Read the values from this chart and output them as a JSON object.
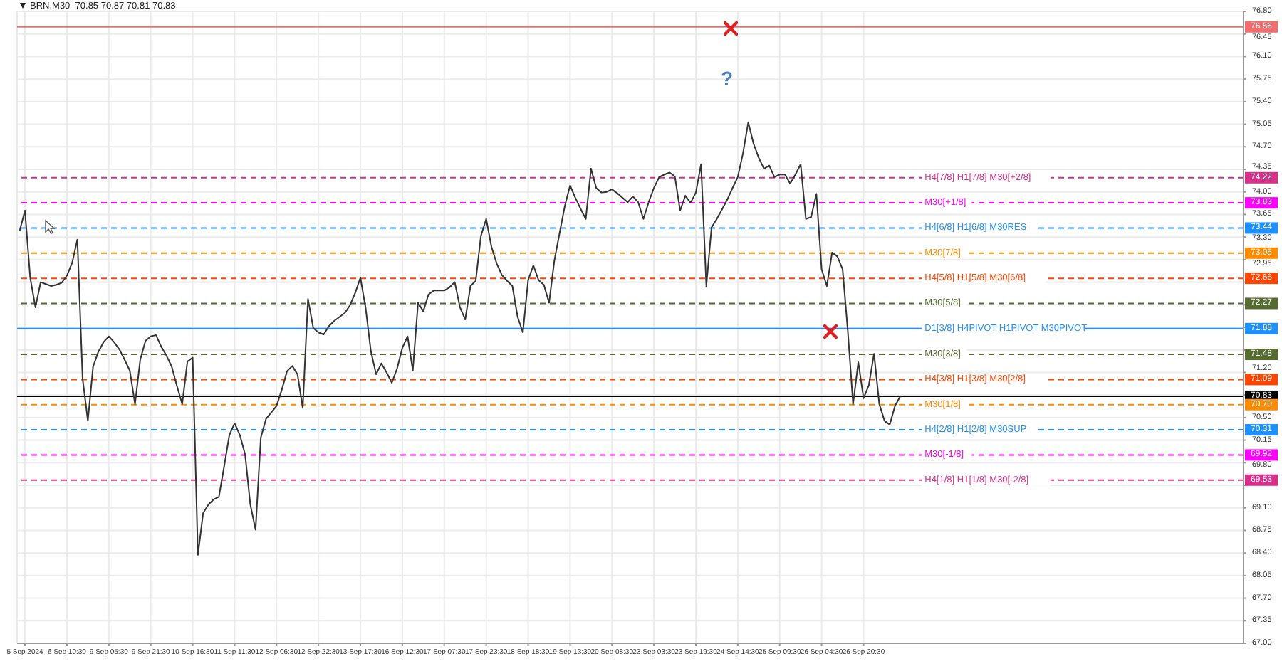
{
  "chart_data": {
    "type": "line",
    "title": "BRN,M30  70.85 70.87 70.81 70.83",
    "categories": [
      null,
      "5 Sep 2024",
      null,
      null,
      null,
      null,
      null,
      null,
      null,
      "6 Sep 10:30",
      null,
      null,
      null,
      null,
      null,
      null,
      null,
      "9 Sep 05:30",
      null,
      null,
      null,
      null,
      null,
      null,
      null,
      "9 Sep 21:30",
      null,
      null,
      null,
      null,
      null,
      null,
      null,
      "10 Sep 16:30",
      null,
      null,
      null,
      null,
      null,
      null,
      null,
      "11 Sep 11:30",
      null,
      null,
      null,
      null,
      null,
      null,
      null,
      "12 Sep 06:30",
      null,
      null,
      null,
      null,
      null,
      null,
      null,
      "12 Sep 22:30",
      null,
      null,
      null,
      null,
      null,
      null,
      null,
      "13 Sep 17:30",
      null,
      null,
      null,
      null,
      null,
      null,
      null,
      "16 Sep 12:30",
      null,
      null,
      null,
      null,
      null,
      null,
      null,
      "17 Sep 07:30",
      null,
      null,
      null,
      null,
      null,
      null,
      null,
      "17 Sep 23:30",
      null,
      null,
      null,
      null,
      null,
      null,
      null,
      "18 Sep 18:30",
      null,
      null,
      null,
      null,
      null,
      null,
      null,
      "19 Sep 13:30",
      null,
      null,
      null,
      null,
      null,
      null,
      null,
      "20 Sep 08:30",
      null,
      null,
      null,
      null,
      null,
      null,
      null,
      "23 Sep 03:30",
      null,
      null,
      null,
      null,
      null,
      null,
      null,
      "23 Sep 19:30",
      null,
      null,
      null,
      null,
      null,
      null,
      null,
      "24 Sep 14:30",
      null,
      null,
      null,
      null,
      null,
      null,
      null,
      "25 Sep 09:30",
      null,
      null,
      null,
      null,
      null,
      null,
      null,
      "26 Sep 04:30",
      null,
      null,
      null,
      null,
      null,
      null,
      null,
      "26 Sep 20:30",
      null,
      null,
      null,
      null,
      null,
      null,
      null,
      null,
      null,
      null,
      null,
      null,
      null,
      null,
      null,
      null,
      null,
      null,
      null,
      null,
      null,
      null,
      null,
      null,
      null,
      null,
      null,
      null,
      null,
      null,
      null,
      null,
      null,
      null,
      null,
      null,
      null,
      null,
      null,
      null,
      null,
      null,
      null,
      null,
      null,
      null,
      null,
      null,
      null,
      null,
      null,
      null,
      null,
      null,
      null,
      null,
      null,
      null,
      null,
      null,
      null,
      null,
      null,
      null,
      null,
      null,
      null,
      null,
      null,
      null,
      null,
      null
    ],
    "ylim": [
      67.0,
      76.8
    ],
    "yticks": [
      {
        "value": 67,
        "label": "67.00"
      },
      {
        "value": 67.35,
        "label": "67.35"
      },
      {
        "value": 67.7,
        "label": "67.70"
      },
      {
        "value": 68.05,
        "label": "68.05"
      },
      {
        "value": 68.4,
        "label": "68.40"
      },
      {
        "value": 68.75,
        "label": "68.75"
      },
      {
        "value": 69.1,
        "label": "69.10"
      },
      {
        "value": 69.45,
        "label": null
      },
      {
        "value": 69.8,
        "label": "69.80"
      },
      {
        "value": 70.15,
        "label": "70.15"
      },
      {
        "value": 70.5,
        "label": "70.50"
      },
      {
        "value": 70.85,
        "label": null
      },
      {
        "value": 71.2,
        "label": "71.20"
      },
      {
        "value": 71.55,
        "label": null
      },
      {
        "value": 71.9,
        "label": null
      },
      {
        "value": 72.25,
        "label": null
      },
      {
        "value": 72.6,
        "label": null
      },
      {
        "value": 72.95,
        "label": "72.95"
      },
      {
        "value": 73.3,
        "label": "73.30"
      },
      {
        "value": 73.65,
        "label": "73.65"
      },
      {
        "value": 74,
        "label": "74.00"
      },
      {
        "value": 74.35,
        "label": "74.35"
      },
      {
        "value": 74.7,
        "label": "74.70"
      },
      {
        "value": 75.05,
        "label": "75.05"
      },
      {
        "value": 75.4,
        "label": "75.40"
      },
      {
        "value": 75.75,
        "label": "75.75"
      },
      {
        "value": 76.1,
        "label": "76.10"
      },
      {
        "value": 76.45,
        "label": "76.45"
      },
      {
        "value": 76.8,
        "label": "76.80"
      }
    ],
    "grid": true,
    "series": [
      {
        "color": "#333333",
        "values": [
          73.4,
          73.71,
          72.67,
          72.21,
          72.6,
          72.57,
          72.54,
          72.56,
          72.59,
          72.7,
          72.9,
          73.26,
          71.1,
          70.45,
          71.29,
          71.52,
          71.67,
          71.76,
          71.67,
          71.56,
          71.4,
          71.23,
          70.71,
          71.4,
          71.69,
          71.76,
          71.78,
          71.6,
          71.46,
          71.29,
          70.99,
          70.71,
          71.37,
          71.43,
          68.37,
          69.02,
          69.15,
          69.23,
          69.27,
          69.74,
          70.23,
          70.41,
          70.23,
          69.93,
          69.15,
          68.76,
          70.19,
          70.48,
          70.58,
          70.68,
          70.93,
          71.22,
          71.3,
          71.17,
          70.65,
          72.34,
          71.89,
          71.82,
          71.79,
          71.92,
          72.0,
          72.06,
          72.12,
          72.24,
          72.43,
          72.67,
          72.2,
          71.53,
          71.17,
          71.34,
          71.2,
          71.04,
          71.26,
          71.58,
          71.76,
          71.23,
          72.28,
          72.15,
          72.41,
          72.47,
          72.47,
          72.47,
          72.52,
          72.6,
          72.21,
          72.02,
          72.54,
          72.62,
          73.32,
          73.58,
          73.15,
          72.89,
          72.71,
          72.62,
          72.54,
          72.06,
          71.82,
          72.63,
          72.86,
          72.63,
          72.56,
          72.28,
          72.93,
          73.36,
          73.78,
          74.1,
          73.91,
          73.74,
          73.58,
          74.36,
          74.06,
          73.99,
          74.0,
          74.04,
          73.98,
          73.91,
          73.84,
          73.93,
          73.84,
          73.58,
          73.84,
          74.06,
          74.23,
          74.27,
          74.3,
          74.24,
          73.71,
          73.94,
          73.83,
          73.99,
          74.43,
          72.54,
          73.45,
          73.58,
          73.73,
          73.88,
          74.06,
          74.23,
          74.6,
          75.08,
          74.75,
          74.53,
          74.36,
          74.41,
          74.23,
          74.27,
          74.27,
          74.13,
          74.27,
          74.43,
          73.58,
          73.61,
          73.97,
          72.8,
          72.54,
          73.06,
          73.0,
          72.8,
          71.84,
          70.71,
          71.36,
          70.8,
          71.0,
          71.49,
          70.71,
          70.45,
          70.39,
          70.68,
          70.83,
          null,
          null,
          null,
          null,
          null,
          null,
          null,
          null,
          null,
          null,
          null,
          null,
          null,
          null,
          null,
          null,
          null,
          null,
          null,
          null,
          null,
          null,
          null,
          null,
          null,
          null,
          null,
          null,
          null,
          null,
          null,
          null,
          null,
          null,
          null,
          null,
          null,
          null,
          null,
          null,
          null,
          null,
          null,
          null,
          null,
          null,
          null,
          null,
          null,
          null,
          null,
          null,
          null,
          null,
          null,
          null,
          null,
          null,
          null,
          null,
          null,
          null,
          null,
          null,
          null
        ]
      }
    ],
    "ref_lines": [
      {
        "axis": "y",
        "value": 76.56,
        "color": "#f26d6d",
        "line_style": "solid"
      },
      {
        "axis": "y",
        "value": 74.22,
        "label": "H4[7/8] H1[7/8] M30[+2/8]",
        "color": "#d6308a",
        "line_style": "dashed"
      },
      {
        "axis": "y",
        "value": 73.83,
        "label": "M30[+1/8]",
        "color": "#ff00ff",
        "line_style": "dashed"
      },
      {
        "axis": "y",
        "value": 73.44,
        "label": "H4[6/8] H1[6/8] M30RES",
        "color": "#1e90ff",
        "line_style": "dashed"
      },
      {
        "axis": "y",
        "value": 73.05,
        "label": "M30[7/8]",
        "color": "#ff8c00",
        "line_style": "dashed"
      },
      {
        "axis": "y",
        "value": 72.66,
        "label": "H4[5/8] H1[5/8] M30[6/8]",
        "color": "#ff4500",
        "line_style": "dashed"
      },
      {
        "axis": "y",
        "value": 72.27,
        "label": "M30[5/8]",
        "color": "#556b2f",
        "line_style": "dashed"
      },
      {
        "axis": "y",
        "value": 71.88,
        "label": "D1[3/8] H4PIVOT H1PIVOT M30PIVOT",
        "color": "#1e90ff",
        "line_style": "solid"
      },
      {
        "axis": "y",
        "value": 71.48,
        "label": "M30[3/8]",
        "color": "#556b2f",
        "line_style": "dashed"
      },
      {
        "axis": "y",
        "value": 71.09,
        "label": "H4[3/8] H1[3/8] M30[2/8]",
        "color": "#ff4500",
        "line_style": "dashed"
      },
      {
        "axis": "y",
        "value": 70.83,
        "color": "#000000",
        "line_style": "solid"
      },
      {
        "axis": "y",
        "value": 70.7,
        "label": "M30[1/8]",
        "color": "#ff8c00",
        "line_style": "dashed"
      },
      {
        "axis": "y",
        "value": 70.31,
        "label": "H4[2/8] H1[2/8] M30SUP",
        "color": "#1e90ff",
        "line_style": "dashed"
      },
      {
        "axis": "y",
        "value": 69.92,
        "label": "M30[-1/8]",
        "color": "#ff00ff",
        "line_style": "dashed"
      },
      {
        "axis": "y",
        "value": 69.53,
        "label": "H4[1/8] H1[1/8] M30[-2/8]",
        "color": "#d6308a",
        "line_style": "dashed"
      }
    ],
    "annotations": [
      "?",
      "76.56",
      "74.22",
      "73.83",
      "73.44",
      "73.05",
      "72.66",
      "72.27",
      "71.88",
      "71.48",
      "71.09",
      "70.83",
      "70.70",
      "70.31",
      "69.92",
      "69.53"
    ]
  }
}
